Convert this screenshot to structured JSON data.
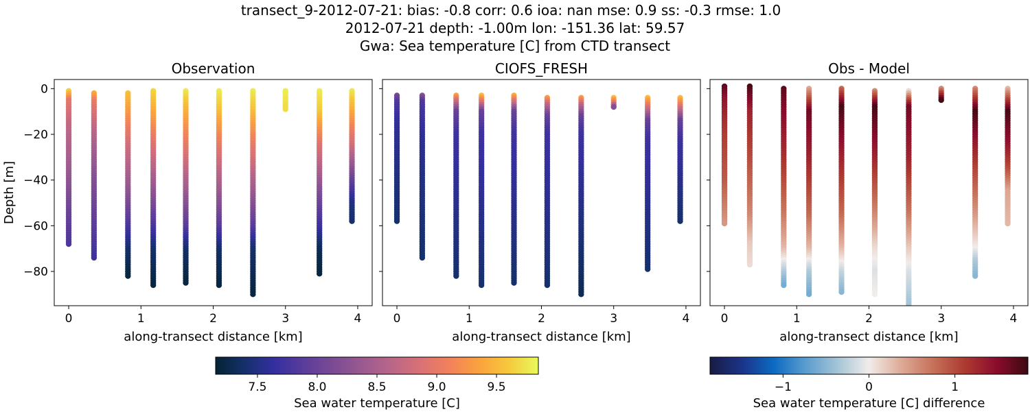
{
  "figure": {
    "title_lines": [
      "transect_9-2012-07-21: bias: -0.8  corr: 0.6  ioa: nan  mse: 0.9  ss: -0.3  rmse: 1.0",
      "2012-07-21 depth: -1.00m lon: -151.36 lat: 59.57",
      "Gwa: Sea temperature [C] from CTD transect"
    ]
  },
  "colors": {
    "thermal_cmap": [
      "#042333",
      "#15306c",
      "#352f9f",
      "#5a3c9b",
      "#7b4b94",
      "#9a5a90",
      "#ba6688",
      "#da7175",
      "#f2825a",
      "#fba33e",
      "#f6c93c",
      "#e8fa5b"
    ],
    "balance_cmap": [
      "#181c43",
      "#1b3389",
      "#0c6ac1",
      "#5a9ccf",
      "#a4c4d6",
      "#f1ecea",
      "#deab98",
      "#c6725a",
      "#ad3b31",
      "#8b0d2d",
      "#3c0912"
    ]
  },
  "chart_data": [
    {
      "type": "scatter",
      "title": "Observation",
      "xlabel": "along-transect distance [km]",
      "ylabel": "Depth [m]",
      "xlim": [
        -0.2,
        4.2
      ],
      "ylim": [
        -95,
        4
      ],
      "xticks": [
        0,
        1,
        2,
        3,
        4
      ],
      "yticks": [
        0,
        -20,
        -40,
        -60,
        -80
      ],
      "colormap": "thermal",
      "clim": [
        7.15,
        9.85
      ],
      "casts": [
        {
          "x": 0.0,
          "top": -1,
          "bottom": -68,
          "stops": [
            [
              0,
              9.8
            ],
            [
              -5,
              9.0
            ],
            [
              -15,
              8.7
            ],
            [
              -35,
              8.4
            ],
            [
              -55,
              8.0
            ],
            [
              -68,
              7.8
            ]
          ]
        },
        {
          "x": 0.35,
          "top": -2,
          "bottom": -74,
          "stops": [
            [
              0,
              9.6
            ],
            [
              -6,
              9.0
            ],
            [
              -20,
              8.6
            ],
            [
              -40,
              8.2
            ],
            [
              -60,
              7.9
            ],
            [
              -74,
              7.7
            ]
          ]
        },
        {
          "x": 0.82,
          "top": -2,
          "bottom": -82,
          "stops": [
            [
              0,
              9.6
            ],
            [
              -10,
              9.3
            ],
            [
              -25,
              8.8
            ],
            [
              -45,
              8.3
            ],
            [
              -60,
              7.8
            ],
            [
              -70,
              7.4
            ],
            [
              -82,
              7.2
            ]
          ]
        },
        {
          "x": 1.17,
          "top": -1,
          "bottom": -86,
          "stops": [
            [
              0,
              9.7
            ],
            [
              -10,
              9.4
            ],
            [
              -25,
              8.9
            ],
            [
              -45,
              8.3
            ],
            [
              -60,
              7.8
            ],
            [
              -70,
              7.4
            ],
            [
              -86,
              7.2
            ]
          ]
        },
        {
          "x": 1.62,
          "top": -1,
          "bottom": -85,
          "stops": [
            [
              0,
              9.8
            ],
            [
              -8,
              9.5
            ],
            [
              -25,
              9.0
            ],
            [
              -45,
              8.4
            ],
            [
              -60,
              7.9
            ],
            [
              -70,
              7.4
            ],
            [
              -85,
              7.2
            ]
          ]
        },
        {
          "x": 2.08,
          "top": -1,
          "bottom": -86,
          "stops": [
            [
              0,
              9.8
            ],
            [
              -8,
              9.6
            ],
            [
              -25,
              9.0
            ],
            [
              -45,
              8.4
            ],
            [
              -60,
              7.9
            ],
            [
              -70,
              7.4
            ],
            [
              -86,
              7.2
            ]
          ]
        },
        {
          "x": 2.55,
          "top": -1,
          "bottom": -90,
          "stops": [
            [
              0,
              9.8
            ],
            [
              -8,
              9.6
            ],
            [
              -25,
              9.0
            ],
            [
              -45,
              8.4
            ],
            [
              -60,
              7.9
            ],
            [
              -70,
              7.4
            ],
            [
              -90,
              7.2
            ]
          ]
        },
        {
          "x": 3.0,
          "top": -1,
          "bottom": -9,
          "stops": [
            [
              0,
              9.8
            ],
            [
              -9,
              9.7
            ]
          ]
        },
        {
          "x": 3.47,
          "top": -1,
          "bottom": -81,
          "stops": [
            [
              0,
              9.8
            ],
            [
              -10,
              9.6
            ],
            [
              -25,
              8.9
            ],
            [
              -45,
              8.2
            ],
            [
              -60,
              7.7
            ],
            [
              -70,
              7.3
            ],
            [
              -81,
              7.2
            ]
          ]
        },
        {
          "x": 3.92,
          "top": -1,
          "bottom": -58,
          "stops": [
            [
              0,
              9.8
            ],
            [
              -10,
              9.4
            ],
            [
              -25,
              8.8
            ],
            [
              -40,
              8.0
            ],
            [
              -50,
              7.5
            ],
            [
              -58,
              7.4
            ]
          ]
        }
      ]
    },
    {
      "type": "scatter",
      "title": "CIOFS_FRESH",
      "xlabel": "along-transect distance [km]",
      "xlim": [
        -0.2,
        4.2
      ],
      "ylim": [
        -95,
        4
      ],
      "xticks": [
        0,
        1,
        2,
        3,
        4
      ],
      "yticks": [
        0,
        -20,
        -40,
        -60,
        -80
      ],
      "colormap": "thermal",
      "clim": [
        7.15,
        9.85
      ],
      "casts": [
        {
          "x": 0.0,
          "top": -3,
          "bottom": -58,
          "stops": [
            [
              -3,
              8.1
            ],
            [
              -6,
              7.8
            ],
            [
              -15,
              7.6
            ],
            [
              -35,
              7.5
            ],
            [
              -58,
              7.4
            ]
          ]
        },
        {
          "x": 0.35,
          "top": -3,
          "bottom": -74,
          "stops": [
            [
              -3,
              8.2
            ],
            [
              -6,
              7.8
            ],
            [
              -20,
              7.6
            ],
            [
              -40,
              7.5
            ],
            [
              -74,
              7.4
            ]
          ]
        },
        {
          "x": 0.82,
          "top": -3,
          "bottom": -82,
          "stops": [
            [
              -3,
              9.3
            ],
            [
              -6,
              8.7
            ],
            [
              -10,
              8.0
            ],
            [
              -20,
              7.7
            ],
            [
              -82,
              7.4
            ]
          ]
        },
        {
          "x": 1.17,
          "top": -3,
          "bottom": -86,
          "stops": [
            [
              -3,
              9.5
            ],
            [
              -6,
              8.9
            ],
            [
              -10,
              8.0
            ],
            [
              -20,
              7.7
            ],
            [
              -86,
              7.4
            ]
          ]
        },
        {
          "x": 1.62,
          "top": -3,
          "bottom": -85,
          "stops": [
            [
              -3,
              9.4
            ],
            [
              -6,
              8.8
            ],
            [
              -10,
              8.0
            ],
            [
              -20,
              7.7
            ],
            [
              -85,
              7.4
            ]
          ]
        },
        {
          "x": 2.08,
          "top": -4,
          "bottom": -86,
          "stops": [
            [
              -4,
              9.3
            ],
            [
              -7,
              8.7
            ],
            [
              -12,
              8.0
            ],
            [
              -20,
              7.7
            ],
            [
              -86,
              7.4
            ]
          ]
        },
        {
          "x": 2.55,
          "top": -4,
          "bottom": -90,
          "stops": [
            [
              -4,
              9.3
            ],
            [
              -7,
              8.7
            ],
            [
              -12,
              8.0
            ],
            [
              -20,
              7.7
            ],
            [
              -90,
              7.3
            ]
          ]
        },
        {
          "x": 3.0,
          "top": -4,
          "bottom": -8,
          "stops": [
            [
              -4,
              9.5
            ],
            [
              -6,
              9.0
            ],
            [
              -8,
              8.2
            ]
          ]
        },
        {
          "x": 3.47,
          "top": -4,
          "bottom": -79,
          "stops": [
            [
              -4,
              9.5
            ],
            [
              -8,
              8.9
            ],
            [
              -14,
              8.0
            ],
            [
              -22,
              7.7
            ],
            [
              -79,
              7.4
            ]
          ]
        },
        {
          "x": 3.92,
          "top": -4,
          "bottom": -58,
          "stops": [
            [
              -4,
              9.5
            ],
            [
              -8,
              8.9
            ],
            [
              -14,
              8.0
            ],
            [
              -22,
              7.7
            ],
            [
              -58,
              7.4
            ]
          ]
        }
      ]
    },
    {
      "type": "scatter",
      "title": "Obs - Model",
      "xlabel": "along-transect distance [km]",
      "xlim": [
        -0.2,
        4.2
      ],
      "ylim": [
        -95,
        4
      ],
      "xticks": [
        0,
        1,
        2,
        3,
        4
      ],
      "yticks": [
        0,
        -20,
        -40,
        -60,
        -80
      ],
      "ytick_labels": false,
      "colormap": "balance",
      "clim": [
        -1.85,
        1.85
      ],
      "casts": [
        {
          "x": 0.0,
          "top": 1,
          "bottom": -59,
          "stops": [
            [
              1,
              1.7
            ],
            [
              -5,
              1.4
            ],
            [
              -20,
              1.1
            ],
            [
              -40,
              0.9
            ],
            [
              -59,
              0.5
            ]
          ]
        },
        {
          "x": 0.35,
          "top": 1,
          "bottom": -77,
          "stops": [
            [
              1,
              1.8
            ],
            [
              -10,
              1.3
            ],
            [
              -30,
              1.0
            ],
            [
              -55,
              0.6
            ],
            [
              -68,
              0.2
            ],
            [
              -77,
              0.1
            ]
          ]
        },
        {
          "x": 0.82,
          "top": 0,
          "bottom": -86,
          "stops": [
            [
              0,
              1.7
            ],
            [
              -10,
              1.5
            ],
            [
              -30,
              1.2
            ],
            [
              -55,
              0.7
            ],
            [
              -70,
              0.3
            ],
            [
              -80,
              -0.3
            ],
            [
              -86,
              -0.6
            ]
          ]
        },
        {
          "x": 1.17,
          "top": 0,
          "bottom": -90,
          "stops": [
            [
              0,
              0.4
            ],
            [
              -10,
              1.6
            ],
            [
              -30,
              1.3
            ],
            [
              -55,
              0.8
            ],
            [
              -70,
              0.3
            ],
            [
              -80,
              -0.3
            ],
            [
              -90,
              -0.6
            ]
          ]
        },
        {
          "x": 1.62,
          "top": 0,
          "bottom": -89,
          "stops": [
            [
              0,
              0.8
            ],
            [
              -8,
              1.8
            ],
            [
              -30,
              1.3
            ],
            [
              -55,
              0.8
            ],
            [
              -70,
              0.3
            ],
            [
              -80,
              -0.2
            ],
            [
              -89,
              -0.5
            ]
          ]
        },
        {
          "x": 2.08,
          "top": -1,
          "bottom": -90,
          "stops": [
            [
              -1,
              0.6
            ],
            [
              -8,
              1.8
            ],
            [
              -30,
              1.3
            ],
            [
              -55,
              0.6
            ],
            [
              -70,
              0.1
            ],
            [
              -80,
              -0.1
            ],
            [
              -90,
              0.0
            ]
          ]
        },
        {
          "x": 2.55,
          "top": -1,
          "bottom": -96,
          "stops": [
            [
              -1,
              0.1
            ],
            [
              -8,
              1.6
            ],
            [
              -30,
              1.3
            ],
            [
              -55,
              0.7
            ],
            [
              -70,
              0.2
            ],
            [
              -80,
              -0.1
            ],
            [
              -96,
              -0.4
            ]
          ]
        },
        {
          "x": 3.0,
          "top": 0,
          "bottom": -5,
          "stops": [
            [
              0,
              0.6
            ],
            [
              -3,
              1.3
            ],
            [
              -5,
              1.8
            ]
          ]
        },
        {
          "x": 3.47,
          "top": 0,
          "bottom": -82,
          "stops": [
            [
              0,
              0.6
            ],
            [
              -10,
              1.8
            ],
            [
              -30,
              1.2
            ],
            [
              -55,
              0.5
            ],
            [
              -70,
              0.0
            ],
            [
              -75,
              -0.3
            ],
            [
              -82,
              -0.5
            ]
          ]
        },
        {
          "x": 3.92,
          "top": 0,
          "bottom": -59,
          "stops": [
            [
              0,
              0.3
            ],
            [
              -10,
              1.8
            ],
            [
              -25,
              1.4
            ],
            [
              -35,
              1.0
            ],
            [
              -45,
              0.4
            ],
            [
              -59,
              0.3
            ]
          ]
        }
      ]
    }
  ],
  "colorbars": [
    {
      "label": "Sea water temperature [C]",
      "colormap": "thermal",
      "range": [
        7.15,
        9.85
      ],
      "ticks": [
        7.5,
        8.0,
        8.5,
        9.0,
        9.5
      ],
      "tick_labels": [
        "7.5",
        "8.0",
        "8.5",
        "9.0",
        "9.5"
      ]
    },
    {
      "label": "Sea water temperature [C] difference",
      "colormap": "balance",
      "range": [
        -1.85,
        1.85
      ],
      "ticks": [
        -1,
        0,
        1
      ],
      "tick_labels": [
        "−1",
        "0",
        "1"
      ]
    }
  ]
}
